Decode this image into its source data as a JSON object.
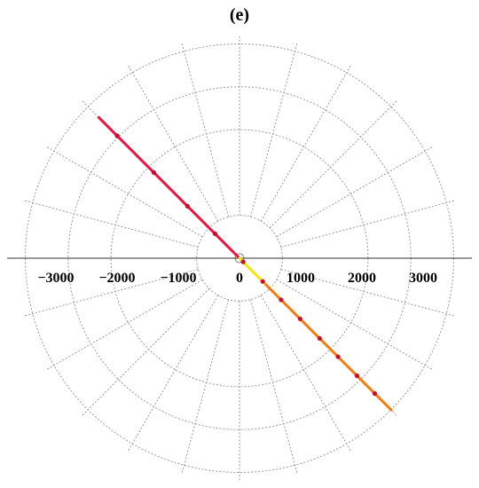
{
  "panel_label": "(e)",
  "chart_data": {
    "type": "polar",
    "title": "(e)",
    "xlabel": "",
    "ylabel": "",
    "xlim": [
      -3750,
      3750
    ],
    "x_ticks": [
      {
        "value": -3000,
        "label": "−3000"
      },
      {
        "value": -2000,
        "label": "−2000"
      },
      {
        "value": -1000,
        "label": "−1000"
      },
      {
        "value": 0,
        "label": "0"
      },
      {
        "value": 1000,
        "label": "1000"
      },
      {
        "value": 2000,
        "label": "2000"
      },
      {
        "value": 3000,
        "label": "3000"
      }
    ],
    "polar_grid": {
      "radii": [
        700,
        2100,
        2800,
        3500
      ],
      "radial_lines_every_deg": 15,
      "inner_radius": 700,
      "outer_radius": 3650,
      "style": "dashed gray"
    },
    "series": [
      {
        "color": "#e8133f",
        "points": [
          [
            -2300,
            2300
          ],
          [
            0,
            0
          ]
        ]
      },
      {
        "color": "#f5e800",
        "points": [
          [
            0,
            0
          ],
          [
            430,
            -430
          ]
        ]
      },
      {
        "color": "#f47b0e",
        "points": [
          [
            430,
            -430
          ],
          [
            2480,
            -2480
          ]
        ]
      }
    ],
    "markers": {
      "color": "#c8102e",
      "points": [
        [
          -2000,
          2000
        ],
        [
          -1400,
          1400
        ],
        [
          -850,
          850
        ],
        [
          -400,
          400
        ],
        [
          60,
          -60
        ],
        [
          380,
          -380
        ],
        [
          680,
          -680
        ],
        [
          990,
          -990
        ],
        [
          1310,
          -1310
        ],
        [
          1610,
          -1610
        ],
        [
          1920,
          -1920
        ],
        [
          2210,
          -2210
        ]
      ]
    }
  }
}
